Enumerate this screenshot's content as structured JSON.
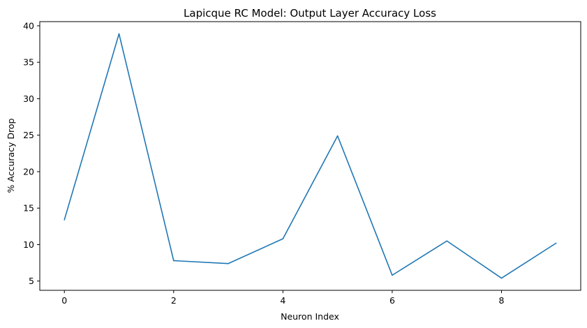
{
  "chart_data": {
    "type": "line",
    "title": "Lapicque RC Model: Output Layer Accuracy Loss",
    "xlabel": "Neuron Index",
    "ylabel": "% Accuracy Drop",
    "x": [
      0,
      1,
      2,
      3,
      4,
      5,
      6,
      7,
      8,
      9
    ],
    "series": [
      {
        "values": [
          13.4,
          38.9,
          7.8,
          7.4,
          10.8,
          24.9,
          5.8,
          10.5,
          5.4,
          10.2
        ],
        "color": "#1f77b4"
      }
    ],
    "xlim": [
      -0.45,
      9.45
    ],
    "ylim": [
      3.73,
      40.57
    ],
    "xticks": [
      "0",
      "2",
      "4",
      "6",
      "8"
    ],
    "yticks": [
      "5",
      "10",
      "15",
      "20",
      "25",
      "30",
      "35",
      "40"
    ],
    "grid": false,
    "legend": false
  }
}
